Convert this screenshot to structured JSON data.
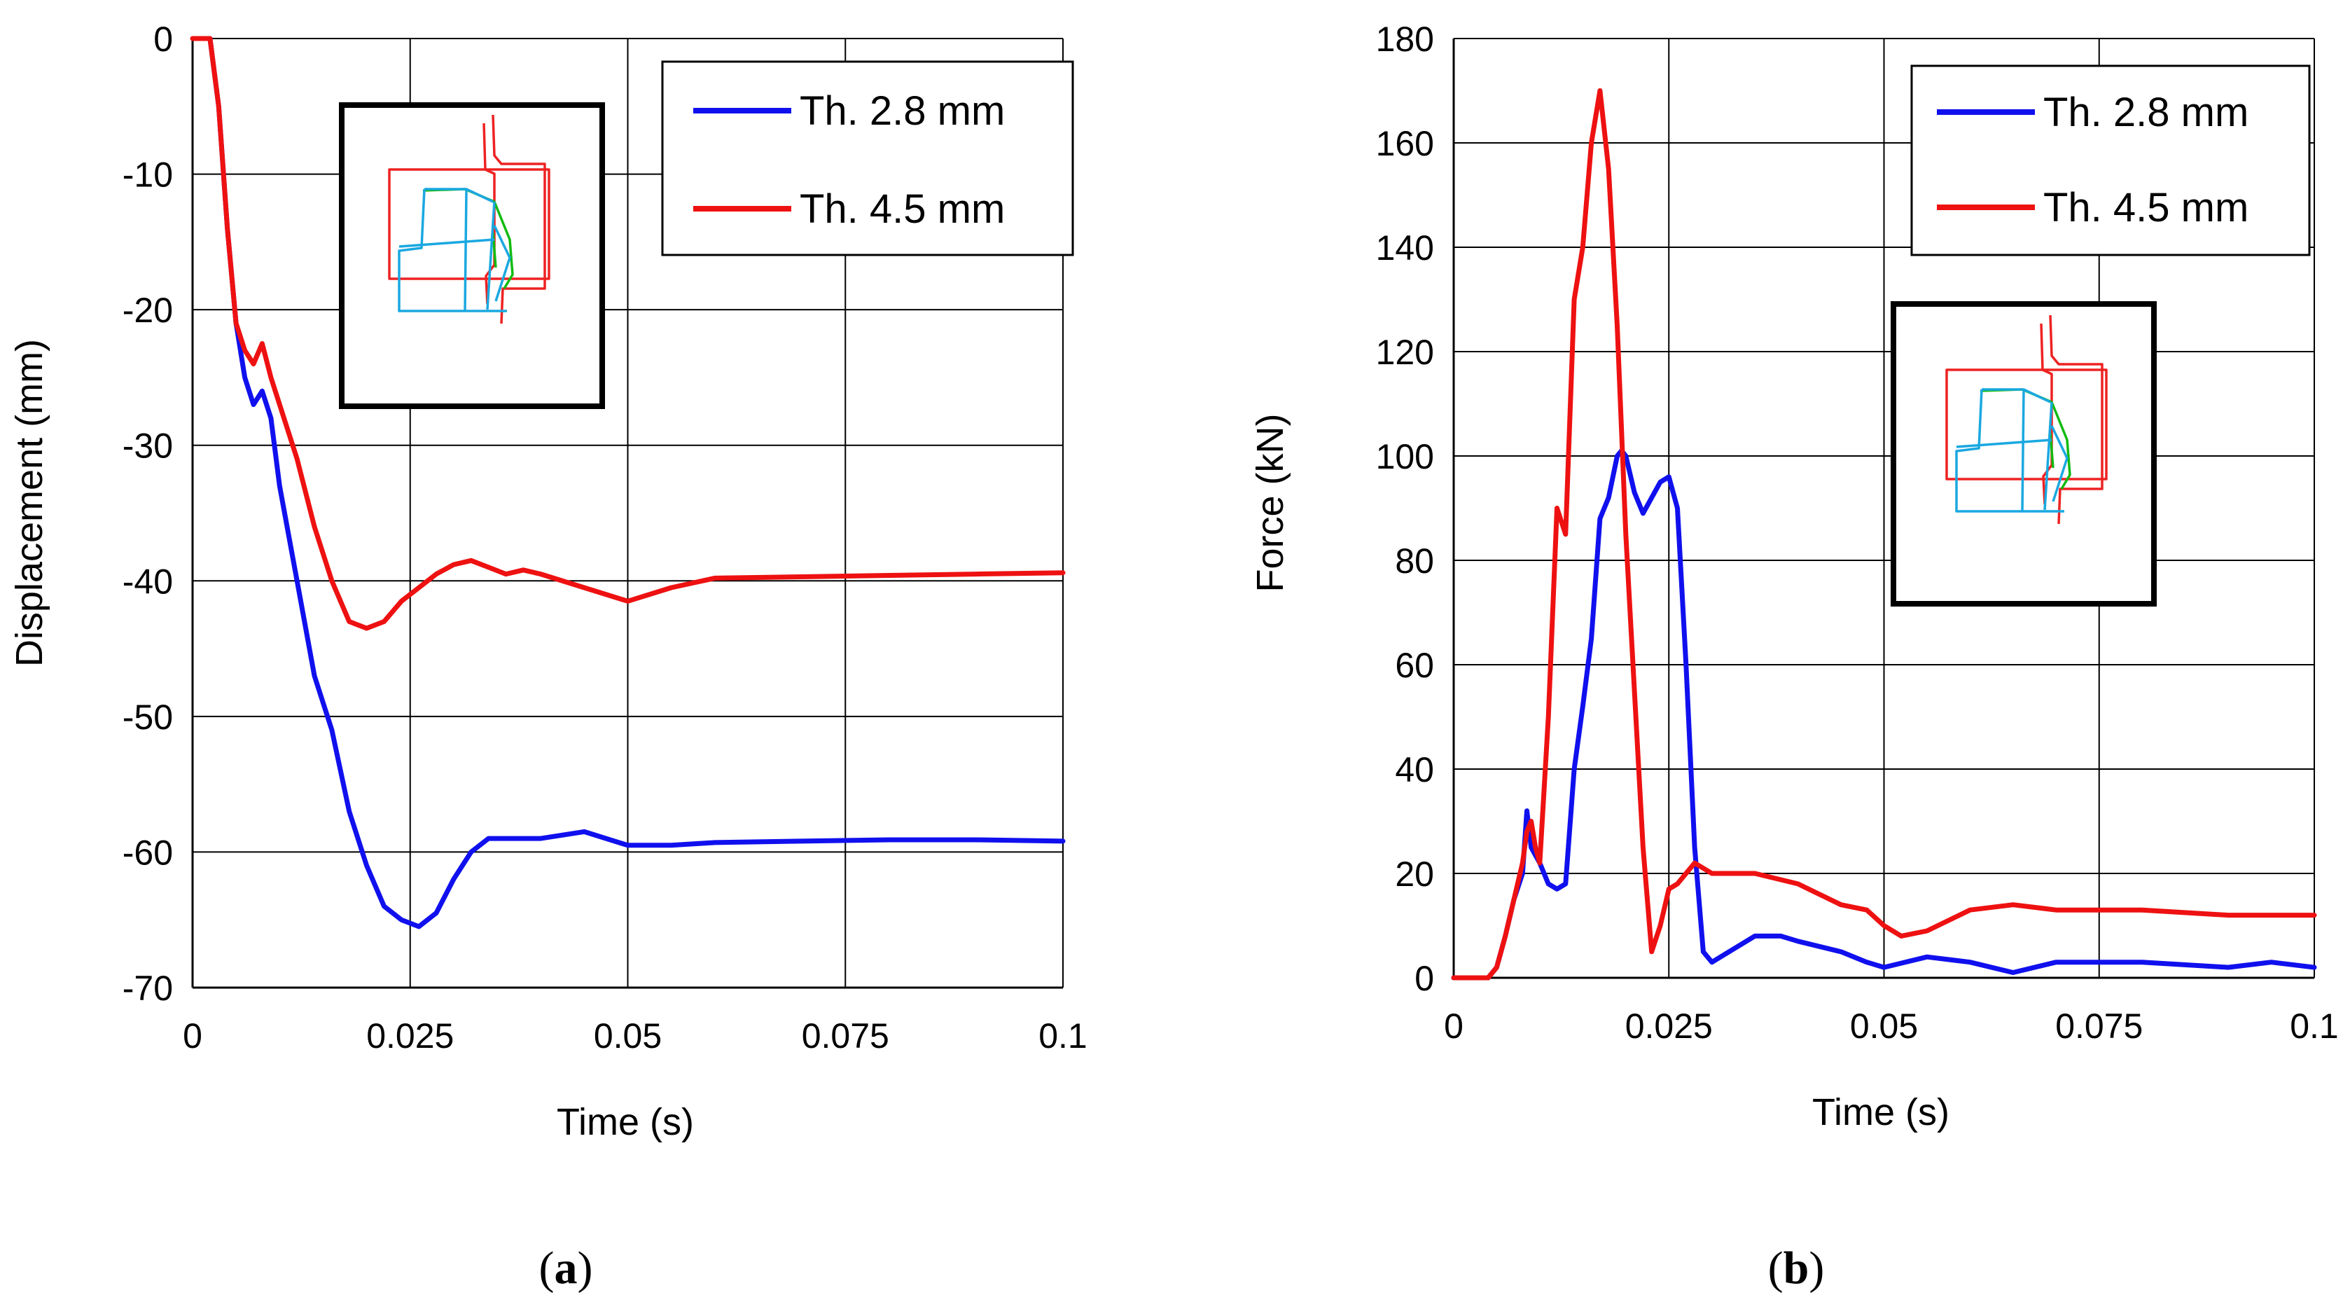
{
  "colors": {
    "blue": "#1010ee",
    "red": "#ee1111",
    "grid": "#000000",
    "inset_blue": "#1aa8e0",
    "inset_green": "#11bb11",
    "inset_red": "#ee2222"
  },
  "panels": [
    {
      "label_open": "(",
      "label_letter": "a",
      "label_close": ")"
    },
    {
      "label_open": "(",
      "label_letter": "b",
      "label_close": ")"
    }
  ],
  "chart_data": [
    {
      "type": "line",
      "xlabel": "Time (s)",
      "ylabel": "Displacement (mm)",
      "xlim": [
        0,
        0.1
      ],
      "ylim": [
        -70,
        0
      ],
      "xticks": [
        0,
        0.025,
        0.05,
        0.075,
        0.1
      ],
      "xtick_labels": [
        "0",
        "0.025",
        "0.05",
        "0.075",
        "0.1"
      ],
      "yticks": [
        0,
        -10,
        -20,
        -30,
        -40,
        -50,
        -60,
        -70
      ],
      "ytick_labels": [
        "0",
        "-10",
        "-20",
        "-30",
        "-40",
        "-50",
        "-60",
        "-70"
      ],
      "grid": true,
      "legend_position": "top-right",
      "series": [
        {
          "name": "Th. 2.8 mm",
          "color": "#1010ee",
          "x": [
            0.002,
            0.003,
            0.004,
            0.005,
            0.006,
            0.007,
            0.008,
            0.009,
            0.01,
            0.012,
            0.014,
            0.016,
            0.018,
            0.02,
            0.022,
            0.024,
            0.026,
            0.028,
            0.03,
            0.032,
            0.034,
            0.036,
            0.04,
            0.045,
            0.05,
            0.055,
            0.06,
            0.07,
            0.08,
            0.09,
            0.1
          ],
          "y": [
            0,
            -5,
            -14,
            -21,
            -25,
            -27,
            -26,
            -28,
            -33,
            -40,
            -47,
            -51,
            -57,
            -61,
            -64,
            -65,
            -65.5,
            -64.5,
            -62,
            -60,
            -59,
            -59,
            -59,
            -58.5,
            -59.5,
            -59.5,
            -59.3,
            -59.2,
            -59.1,
            -59.1,
            -59.2
          ]
        },
        {
          "name": "Th. 4.5 mm",
          "color": "#ee1111",
          "x": [
            0,
            0.002,
            0.003,
            0.004,
            0.005,
            0.006,
            0.007,
            0.008,
            0.009,
            0.01,
            0.012,
            0.014,
            0.016,
            0.018,
            0.02,
            0.022,
            0.024,
            0.026,
            0.028,
            0.03,
            0.032,
            0.034,
            0.036,
            0.038,
            0.04,
            0.045,
            0.05,
            0.055,
            0.06,
            0.07,
            0.08,
            0.09,
            0.1
          ],
          "y": [
            0,
            0,
            -5,
            -14,
            -21,
            -23,
            -24,
            -22.5,
            -25,
            -27,
            -31,
            -36,
            -40,
            -43,
            -43.5,
            -43,
            -41.5,
            -40.5,
            -39.5,
            -38.8,
            -38.5,
            -39,
            -39.5,
            -39.2,
            -39.5,
            -40.5,
            -41.5,
            -40.5,
            -39.8,
            -39.7,
            -39.6,
            -39.5,
            -39.4
          ]
        }
      ]
    },
    {
      "type": "line",
      "xlabel": "Time (s)",
      "ylabel": "Force (kN)",
      "xlim": [
        0,
        0.1
      ],
      "ylim": [
        0,
        180
      ],
      "xticks": [
        0,
        0.025,
        0.05,
        0.075,
        0.1
      ],
      "xtick_labels": [
        "0",
        "0.025",
        "0.05",
        "0.075",
        "0.1"
      ],
      "yticks": [
        0,
        20,
        40,
        60,
        80,
        100,
        120,
        140,
        160,
        180
      ],
      "ytick_labels": [
        "0",
        "20",
        "40",
        "60",
        "80",
        "100",
        "120",
        "140",
        "160",
        "180"
      ],
      "grid": true,
      "legend_position": "top-right",
      "series": [
        {
          "name": "Th. 2.8 mm",
          "color": "#1010ee",
          "x": [
            0,
            0.004,
            0.005,
            0.006,
            0.007,
            0.008,
            0.0085,
            0.009,
            0.01,
            0.011,
            0.012,
            0.013,
            0.014,
            0.015,
            0.016,
            0.017,
            0.018,
            0.019,
            0.0195,
            0.02,
            0.021,
            0.022,
            0.023,
            0.024,
            0.025,
            0.026,
            0.027,
            0.028,
            0.029,
            0.03,
            0.032,
            0.035,
            0.038,
            0.04,
            0.045,
            0.048,
            0.05,
            0.055,
            0.06,
            0.065,
            0.07,
            0.08,
            0.09,
            0.095,
            0.1
          ],
          "y": [
            0,
            0,
            2,
            8,
            15,
            20,
            32,
            25,
            22,
            18,
            17,
            18,
            40,
            52,
            65,
            88,
            92,
            100,
            101,
            100,
            93,
            89,
            92,
            95,
            96,
            90,
            60,
            25,
            5,
            3,
            5,
            8,
            8,
            7,
            5,
            3,
            2,
            4,
            3,
            1,
            3,
            3,
            2,
            3,
            2
          ]
        },
        {
          "name": "Th. 4.5 mm",
          "color": "#ee1111",
          "x": [
            0,
            0.004,
            0.005,
            0.006,
            0.007,
            0.008,
            0.0085,
            0.009,
            0.0095,
            0.01,
            0.011,
            0.012,
            0.013,
            0.014,
            0.015,
            0.016,
            0.017,
            0.018,
            0.019,
            0.02,
            0.021,
            0.022,
            0.023,
            0.024,
            0.025,
            0.026,
            0.027,
            0.028,
            0.03,
            0.032,
            0.035,
            0.04,
            0.045,
            0.048,
            0.05,
            0.052,
            0.055,
            0.06,
            0.065,
            0.07,
            0.08,
            0.09,
            0.1
          ],
          "y": [
            0,
            0,
            2,
            8,
            15,
            22,
            28,
            30,
            25,
            22,
            50,
            90,
            85,
            130,
            140,
            160,
            170,
            155,
            125,
            85,
            55,
            25,
            5,
            10,
            17,
            18,
            20,
            22,
            20,
            20,
            20,
            18,
            14,
            13,
            10,
            8,
            9,
            13,
            14,
            13,
            13,
            12,
            12
          ]
        }
      ]
    }
  ]
}
